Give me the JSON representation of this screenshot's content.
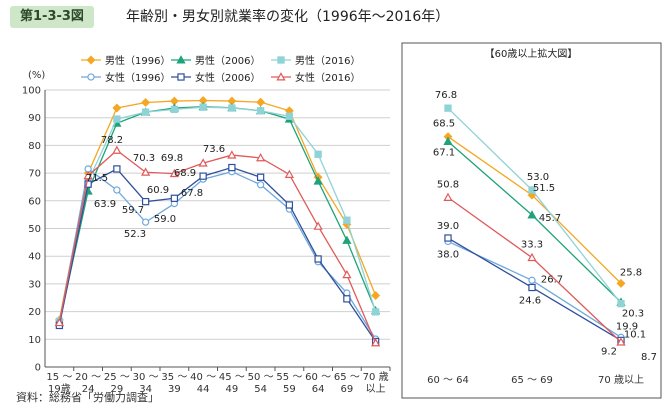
{
  "figure_label": "第1-3-3図",
  "figure_title": "年齢別・男女別就業率の変化（1996年〜2016年）",
  "source": "資料：総務省「労働力調査」",
  "chart_data": [
    {
      "type": "line",
      "ylabel": "(%)",
      "ylim": [
        0,
        100
      ],
      "yticks": [
        0,
        10,
        20,
        30,
        40,
        50,
        60,
        70,
        80,
        90,
        100
      ],
      "categories": [
        [
          "15 〜",
          "19歳"
        ],
        [
          "20 〜",
          "24"
        ],
        [
          "25 〜",
          "29"
        ],
        [
          "30 〜",
          "34"
        ],
        [
          "35 〜",
          "39"
        ],
        [
          "40 〜",
          "44"
        ],
        [
          "45 〜",
          "49"
        ],
        [
          "50 〜",
          "54"
        ],
        [
          "55 〜",
          "59"
        ],
        [
          "60 〜",
          "64"
        ],
        [
          "65 〜",
          "69"
        ],
        [
          "70 歳",
          "以上"
        ]
      ],
      "grid": "horizontal",
      "legend": "top",
      "series": [
        {
          "name": "男性（1996）",
          "color": "#f5a623",
          "marker": "diamond",
          "fill": true,
          "values": [
            17,
            70,
            93.5,
            95.5,
            96,
            96.2,
            96,
            95.6,
            92.5,
            68.5,
            51.5,
            25.8
          ]
        },
        {
          "name": "男性（2006）",
          "color": "#1fa37a",
          "marker": "triangle",
          "fill": true,
          "values": [
            16,
            63.5,
            88,
            92,
            93.5,
            94,
            93.6,
            92.5,
            89.5,
            67.1,
            45.7,
            20.3
          ]
        },
        {
          "name": "男性（2016）",
          "color": "#8fd3d6",
          "marker": "square",
          "fill": true,
          "values": [
            16.5,
            67,
            89.5,
            92,
            93,
            93.8,
            93.5,
            92.5,
            90.5,
            76.8,
            53.0,
            19.9
          ]
        },
        {
          "name": "女性（1996）",
          "color": "#6fa8dc",
          "marker": "circle",
          "fill": false,
          "values": [
            16,
            71.5,
            63.9,
            52.3,
            59.0,
            67.8,
            70.5,
            65.8,
            57,
            38.0,
            26.7,
            10.1
          ]
        },
        {
          "name": "女性（2006）",
          "color": "#2f4f9e",
          "marker": "square",
          "fill": false,
          "values": [
            15,
            66,
            71.5,
            59.7,
            60.9,
            68.9,
            72,
            68.5,
            58.5,
            39.0,
            24.6,
            9.2
          ]
        },
        {
          "name": "女性（2016）",
          "color": "#e05a5a",
          "marker": "triangle",
          "fill": false,
          "values": [
            16,
            69,
            78.2,
            70.3,
            69.8,
            73.6,
            76.5,
            75.5,
            69.5,
            50.8,
            33.3,
            8.7
          ]
        }
      ],
      "annotations": [
        {
          "text": "78.2",
          "series": 5,
          "index": 2
        },
        {
          "text": "71.5",
          "series": 3,
          "index": 1
        },
        {
          "text": "63.9",
          "series": 3,
          "index": 2
        },
        {
          "text": "70.3",
          "series": 5,
          "index": 3
        },
        {
          "text": "69.8",
          "series": 5,
          "index": 4
        },
        {
          "text": "59.7",
          "series": 4,
          "index": 3
        },
        {
          "text": "52.3",
          "series": 3,
          "index": 3
        },
        {
          "text": "60.9",
          "series": 4,
          "index": 4
        },
        {
          "text": "59.0",
          "series": 3,
          "index": 4
        },
        {
          "text": "68.9",
          "series": 4,
          "index": 5
        },
        {
          "text": "67.8",
          "series": 3,
          "index": 5
        },
        {
          "text": "73.6",
          "series": 5,
          "index": 5
        }
      ]
    },
    {
      "type": "line",
      "title": "【60歳以上拡大図】",
      "categories": [
        "60 〜 64",
        "65 〜 69",
        "70 歳以上"
      ],
      "ylim": [
        0,
        85
      ],
      "series_values": [
        [
          68.5,
          51.5,
          25.8
        ],
        [
          67.1,
          45.7,
          20.3
        ],
        [
          76.8,
          53.0,
          19.9
        ],
        [
          38.0,
          26.7,
          10.1
        ],
        [
          39.0,
          24.6,
          9.2
        ],
        [
          50.8,
          33.3,
          8.7
        ]
      ],
      "labels": [
        [
          "68.5",
          "51.5",
          "25.8"
        ],
        [
          "67.1",
          "45.7",
          "20.3"
        ],
        [
          "76.8",
          "53.0",
          "19.9"
        ],
        [
          "38.0",
          "26.7",
          "10.1"
        ],
        [
          "39.0",
          "24.6",
          "9.2"
        ],
        [
          "50.8",
          "33.3",
          "8.7"
        ]
      ]
    }
  ]
}
